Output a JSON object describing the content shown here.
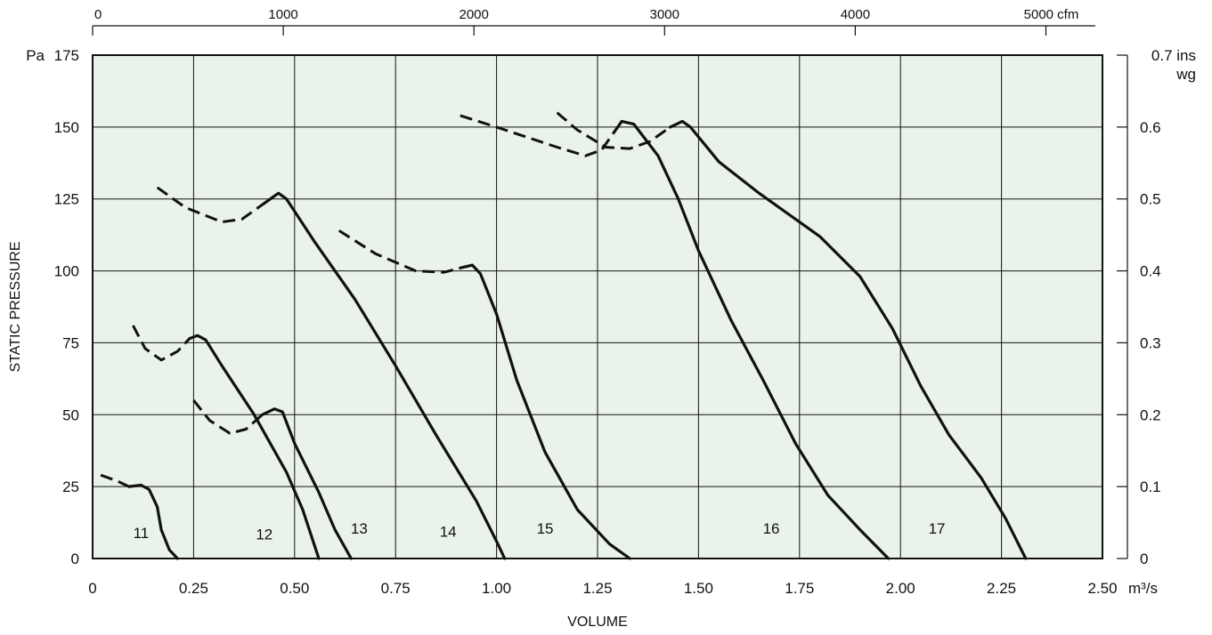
{
  "colors": {
    "plot_background": "#eaf3ea",
    "grid": "#111111",
    "curve": "#111111"
  },
  "chart_data": {
    "type": "line",
    "xlabel": "VOLUME",
    "ylabel": "STATIC PRESSURE",
    "x_unit": "m³/s",
    "y_unit": "Pa",
    "xlim": [
      0,
      2.5
    ],
    "ylim": [
      0,
      175
    ],
    "x_ticks": [
      0,
      0.25,
      0.5,
      0.75,
      1.0,
      1.25,
      1.5,
      1.75,
      2.0,
      2.25,
      2.5
    ],
    "x_tick_labels": [
      "0",
      "0.25",
      "0.50",
      "0.75",
      "1.00",
      "1.25",
      "1.50",
      "1.75",
      "2.00",
      "2.25",
      "2.50"
    ],
    "y_ticks": [
      0,
      25,
      50,
      75,
      100,
      125,
      150,
      175
    ],
    "y_tick_labels": [
      "0",
      "25",
      "50",
      "75",
      "100",
      "125",
      "150",
      "175"
    ],
    "grid": true,
    "secondary_x_axis": {
      "position": "top",
      "unit": "cfm",
      "ticks": [
        0,
        1000,
        2000,
        3000,
        4000,
        5000
      ],
      "tick_labels": [
        "0",
        "1000",
        "2000",
        "3000",
        "4000",
        "5000 cfm"
      ],
      "m3s_per_unit": 0.000472
    },
    "secondary_y_axis": {
      "position": "right",
      "unit": "ins wg",
      "unit_line1": "0.7 ins",
      "unit_line2": "wg",
      "ticks": [
        0,
        0.1,
        0.2,
        0.3,
        0.4,
        0.5,
        0.6,
        0.7
      ],
      "tick_labels": [
        "0",
        "0.1",
        "0.2",
        "0.3",
        "0.4",
        "0.5",
        "0.6",
        "0.7"
      ],
      "pa_per_unit": 250
    },
    "series": [
      {
        "name": "11",
        "dashed": [
          [
            0.02,
            29
          ],
          [
            0.06,
            27
          ],
          [
            0.09,
            25
          ]
        ],
        "solid": [
          [
            0.09,
            25
          ],
          [
            0.12,
            25.5
          ],
          [
            0.14,
            24
          ],
          [
            0.16,
            18
          ],
          [
            0.17,
            10
          ],
          [
            0.19,
            3
          ],
          [
            0.21,
            0
          ]
        ],
        "label_at": [
          0.12,
          9
        ]
      },
      {
        "name": "12",
        "dashed": [
          [
            0.1,
            81
          ],
          [
            0.13,
            73
          ],
          [
            0.17,
            69
          ],
          [
            0.21,
            72
          ],
          [
            0.24,
            76.5
          ]
        ],
        "solid": [
          [
            0.24,
            76.5
          ],
          [
            0.26,
            77.5
          ],
          [
            0.28,
            76
          ],
          [
            0.32,
            67
          ],
          [
            0.4,
            50
          ],
          [
            0.48,
            30
          ],
          [
            0.52,
            17
          ],
          [
            0.56,
            0
          ]
        ],
        "label_at": [
          0.425,
          8.5
        ]
      },
      {
        "name": "13",
        "dashed": [
          [
            0.25,
            55
          ],
          [
            0.29,
            48
          ],
          [
            0.34,
            43.5
          ],
          [
            0.38,
            45
          ],
          [
            0.42,
            50
          ]
        ],
        "solid": [
          [
            0.42,
            50
          ],
          [
            0.45,
            52
          ],
          [
            0.47,
            51
          ],
          [
            0.5,
            40
          ],
          [
            0.56,
            23
          ],
          [
            0.6,
            10
          ],
          [
            0.64,
            0
          ]
        ],
        "label_at": [
          0.66,
          10.5
        ]
      },
      {
        "name": "14",
        "dashed": [
          [
            0.16,
            129
          ],
          [
            0.23,
            122
          ],
          [
            0.32,
            117
          ],
          [
            0.37,
            118
          ],
          [
            0.42,
            123
          ]
        ],
        "solid": [
          [
            0.42,
            123
          ],
          [
            0.46,
            127
          ],
          [
            0.48,
            125
          ],
          [
            0.55,
            110
          ],
          [
            0.65,
            90
          ],
          [
            0.75,
            67
          ],
          [
            0.85,
            43
          ],
          [
            0.95,
            20
          ],
          [
            1.0,
            6
          ],
          [
            1.02,
            0
          ]
        ],
        "label_at": [
          0.88,
          9.5
        ]
      },
      {
        "name": "15",
        "dashed": [
          [
            0.61,
            114
          ],
          [
            0.7,
            106
          ],
          [
            0.8,
            100
          ],
          [
            0.87,
            99.5
          ],
          [
            0.91,
            101
          ]
        ],
        "solid": [
          [
            0.91,
            101
          ],
          [
            0.94,
            102
          ],
          [
            0.96,
            99
          ],
          [
            1.0,
            85
          ],
          [
            1.05,
            62
          ],
          [
            1.12,
            37
          ],
          [
            1.2,
            17
          ],
          [
            1.28,
            5
          ],
          [
            1.33,
            0
          ]
        ],
        "label_at": [
          1.12,
          10.5
        ]
      },
      {
        "name": "16",
        "dashed": [
          [
            0.91,
            154
          ],
          [
            1.0,
            150
          ],
          [
            1.15,
            143
          ],
          [
            1.22,
            140
          ],
          [
            1.26,
            142
          ],
          [
            1.29,
            148
          ]
        ],
        "solid": [
          [
            1.29,
            148
          ],
          [
            1.31,
            152
          ],
          [
            1.34,
            151
          ],
          [
            1.4,
            140
          ],
          [
            1.45,
            125
          ],
          [
            1.5,
            107
          ],
          [
            1.58,
            83
          ],
          [
            1.66,
            62
          ],
          [
            1.74,
            40
          ],
          [
            1.82,
            22
          ],
          [
            1.9,
            10
          ],
          [
            1.97,
            0
          ]
        ],
        "label_at": [
          1.68,
          10.5
        ]
      },
      {
        "name": "17",
        "dashed": [
          [
            1.15,
            155
          ],
          [
            1.2,
            149
          ],
          [
            1.27,
            143
          ],
          [
            1.33,
            142.5
          ],
          [
            1.38,
            145
          ],
          [
            1.43,
            150
          ]
        ],
        "solid": [
          [
            1.43,
            150
          ],
          [
            1.46,
            152
          ],
          [
            1.48,
            150
          ],
          [
            1.55,
            138
          ],
          [
            1.65,
            127
          ],
          [
            1.8,
            112
          ],
          [
            1.9,
            98
          ],
          [
            1.98,
            80
          ],
          [
            2.05,
            60
          ],
          [
            2.12,
            43
          ],
          [
            2.2,
            28
          ],
          [
            2.26,
            14
          ],
          [
            2.31,
            0
          ]
        ],
        "label_at": [
          2.09,
          10.5
        ]
      }
    ]
  }
}
